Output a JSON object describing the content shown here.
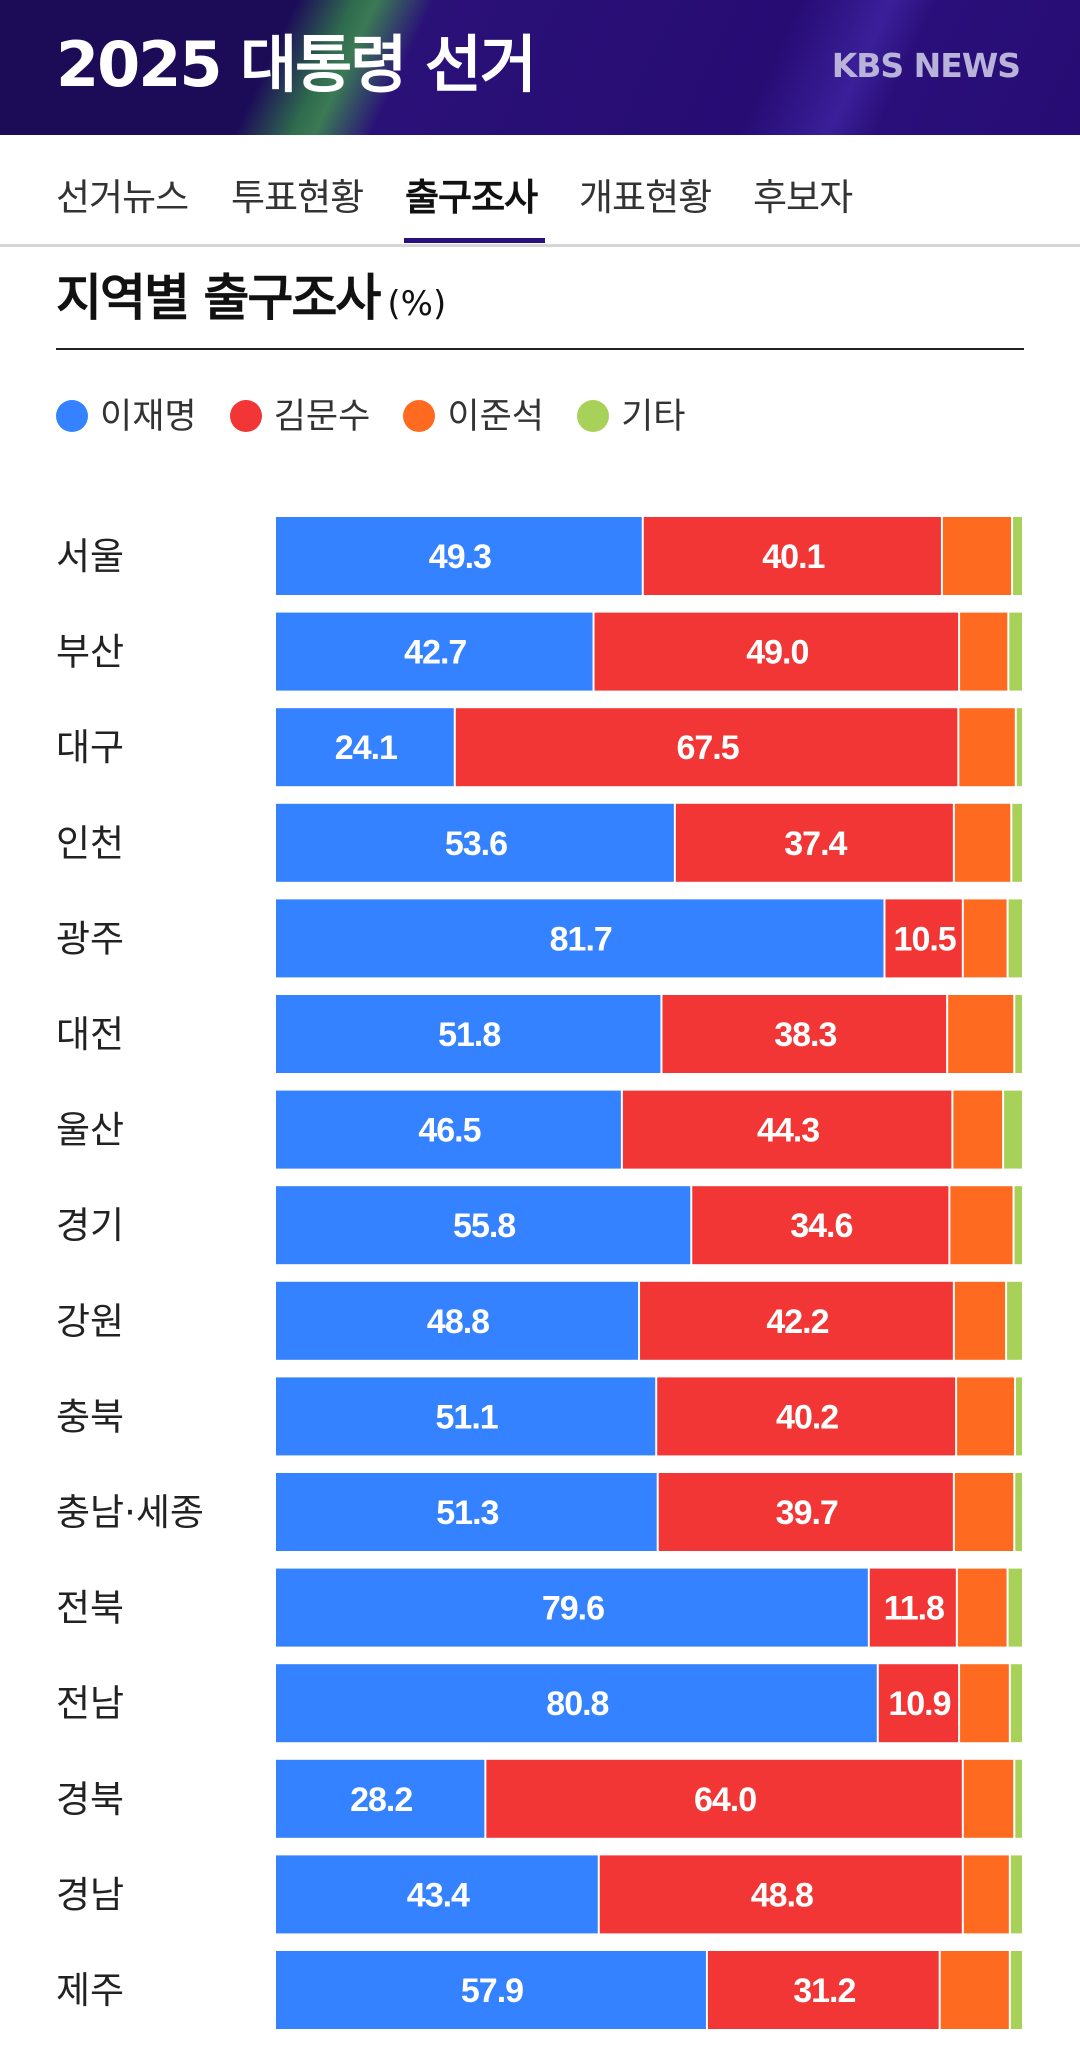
{
  "header": {
    "brand": "2025 대통령 선거",
    "network": "KBS NEWS"
  },
  "tabs": [
    {
      "label": "선거뉴스",
      "active": false
    },
    {
      "label": "투표현황",
      "active": false
    },
    {
      "label": "출구조사",
      "active": true
    },
    {
      "label": "개표현황",
      "active": false
    },
    {
      "label": "후보자",
      "active": false
    }
  ],
  "title": {
    "main": "지역별 출구조사",
    "unit": "(%)"
  },
  "legend": [
    {
      "label": "이재명",
      "color": "#3482ff"
    },
    {
      "label": "김문수",
      "color": "#f23636"
    },
    {
      "label": "이준석",
      "color": "#ff6a21"
    },
    {
      "label": "기타",
      "color": "#a8d15a"
    }
  ],
  "chart_data": {
    "type": "bar",
    "orientation": "horizontal",
    "stacked": true,
    "unit": "%",
    "categories": [
      "서울",
      "부산",
      "대구",
      "인천",
      "광주",
      "대전",
      "울산",
      "경기",
      "강원",
      "충북",
      "충남·세종",
      "전북",
      "전남",
      "경북",
      "경남",
      "제주"
    ],
    "series": [
      {
        "name": "이재명",
        "color": "#3482ff",
        "values": [
          49.3,
          42.7,
          24.1,
          53.6,
          81.7,
          51.8,
          46.5,
          55.8,
          48.8,
          51.1,
          51.3,
          79.6,
          80.8,
          28.2,
          43.4,
          57.9
        ]
      },
      {
        "name": "김문수",
        "color": "#f23636",
        "values": [
          40.1,
          49.0,
          67.5,
          37.4,
          10.5,
          38.3,
          44.3,
          34.6,
          42.2,
          40.2,
          39.7,
          11.8,
          10.9,
          64.0,
          48.8,
          31.2
        ]
      },
      {
        "name": "이준석",
        "color": "#ff6a21",
        "values": [
          9.4,
          6.6,
          7.7,
          7.7,
          6.0,
          9.0,
          6.8,
          8.6,
          7.0,
          7.9,
          8.1,
          6.8,
          6.8,
          6.9,
          6.3,
          9.4
        ]
      },
      {
        "name": "기타",
        "color": "#a8d15a",
        "values": [
          1.2,
          1.7,
          0.7,
          1.3,
          1.8,
          0.9,
          2.4,
          1.0,
          2.0,
          0.8,
          0.9,
          1.8,
          1.5,
          0.9,
          1.5,
          1.5
        ]
      }
    ],
    "labeled_series": [
      "이재명",
      "김문수"
    ],
    "xlim": [
      0,
      100
    ],
    "grid": false
  }
}
